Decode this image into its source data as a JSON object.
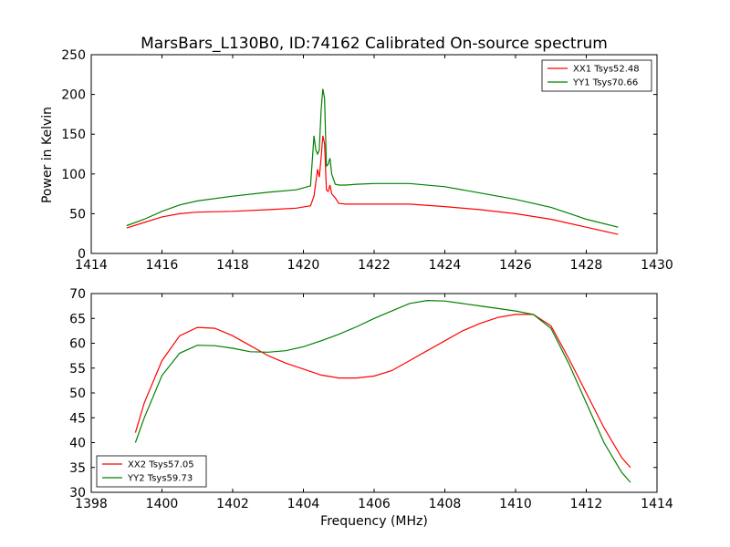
{
  "chart_data": [
    {
      "type": "line",
      "title": "MarsBars_L130B0, ID:74162 Calibrated On-source spectrum",
      "xlabel": "",
      "ylabel": "Power in Kelvin",
      "xlim": [
        1414,
        1430
      ],
      "ylim": [
        0,
        250
      ],
      "xticks": [
        1414,
        1416,
        1418,
        1420,
        1422,
        1424,
        1426,
        1428,
        1430
      ],
      "yticks": [
        0,
        50,
        100,
        150,
        200,
        250
      ],
      "grid": false,
      "legend": "top-right",
      "series": [
        {
          "name": "XX1 Tsys52.48",
          "color": "#ff0000",
          "x": [
            1415.0,
            1415.5,
            1416.0,
            1416.5,
            1417.0,
            1418.0,
            1419.0,
            1419.8,
            1420.2,
            1420.3,
            1420.4,
            1420.45,
            1420.5,
            1420.55,
            1420.6,
            1420.65,
            1420.7,
            1420.75,
            1420.8,
            1420.9,
            1421.0,
            1421.2,
            1421.5,
            1422.0,
            1423.0,
            1424.0,
            1425.0,
            1426.0,
            1427.0,
            1428.0,
            1428.9
          ],
          "y": [
            32,
            39,
            46,
            50,
            52,
            53,
            55,
            57,
            60,
            72,
            106,
            96,
            120,
            148,
            138,
            80,
            78,
            86,
            75,
            70,
            63,
            62,
            62,
            62,
            62,
            59,
            55,
            50,
            43,
            33,
            24
          ]
        },
        {
          "name": "YY1 Tsys70.66",
          "color": "#008000",
          "x": [
            1415.0,
            1415.5,
            1416.0,
            1416.5,
            1417.0,
            1418.0,
            1419.0,
            1419.8,
            1420.2,
            1420.3,
            1420.35,
            1420.4,
            1420.45,
            1420.5,
            1420.55,
            1420.6,
            1420.65,
            1420.7,
            1420.75,
            1420.8,
            1420.9,
            1421.0,
            1421.1,
            1421.2,
            1421.5,
            1422.0,
            1423.0,
            1424.0,
            1425.0,
            1426.0,
            1427.0,
            1428.0,
            1428.9
          ],
          "y": [
            35,
            43,
            53,
            61,
            66,
            72,
            77,
            80,
            85,
            148,
            130,
            125,
            130,
            180,
            207,
            195,
            110,
            112,
            120,
            100,
            87,
            86,
            86,
            86,
            87,
            88,
            88,
            84,
            76,
            68,
            58,
            43,
            33
          ]
        }
      ]
    },
    {
      "type": "line",
      "title": "",
      "xlabel": "Frequency (MHz)",
      "ylabel": "",
      "xlim": [
        1398,
        1414
      ],
      "ylim": [
        30,
        70
      ],
      "xticks": [
        1398,
        1400,
        1402,
        1404,
        1406,
        1408,
        1410,
        1412,
        1414
      ],
      "yticks": [
        30,
        35,
        40,
        45,
        50,
        55,
        60,
        65,
        70
      ],
      "grid": false,
      "legend": "bottom-left",
      "series": [
        {
          "name": "XX2 Tsys57.05",
          "color": "#ff0000",
          "x": [
            1399.25,
            1399.5,
            1400.0,
            1400.5,
            1401.0,
            1401.5,
            1402.0,
            1402.5,
            1403.0,
            1403.5,
            1404.0,
            1404.5,
            1405.0,
            1405.5,
            1406.0,
            1406.5,
            1407.0,
            1407.5,
            1408.0,
            1408.5,
            1409.0,
            1409.5,
            1410.0,
            1410.5,
            1411.0,
            1411.5,
            1412.0,
            1412.5,
            1413.0,
            1413.25
          ],
          "y": [
            42,
            48,
            56.5,
            61.5,
            63.2,
            63,
            61.5,
            59.5,
            57.5,
            56,
            54.8,
            53.6,
            53,
            53,
            53.4,
            54.5,
            56.5,
            58.5,
            60.5,
            62.5,
            64,
            65.2,
            65.8,
            65.8,
            63.5,
            57,
            50,
            43,
            37,
            35
          ]
        },
        {
          "name": "YY2 Tsys59.73",
          "color": "#008000",
          "x": [
            1399.25,
            1399.5,
            1400.0,
            1400.5,
            1401.0,
            1401.5,
            1402.0,
            1402.5,
            1403.0,
            1403.5,
            1404.0,
            1404.5,
            1405.0,
            1405.5,
            1406.0,
            1406.5,
            1407.0,
            1407.5,
            1408.0,
            1408.5,
            1409.0,
            1409.5,
            1410.0,
            1410.5,
            1411.0,
            1411.5,
            1412.0,
            1412.5,
            1413.0,
            1413.25
          ],
          "y": [
            40,
            45,
            53.5,
            58,
            59.6,
            59.5,
            59,
            58.3,
            58.2,
            58.5,
            59.3,
            60.5,
            61.8,
            63.3,
            65,
            66.5,
            68,
            68.6,
            68.5,
            68,
            67.5,
            67,
            66.5,
            65.8,
            63,
            56,
            48,
            40,
            34,
            32
          ]
        }
      ]
    }
  ]
}
